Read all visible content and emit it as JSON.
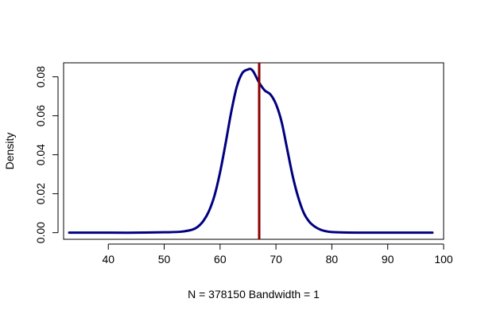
{
  "chart_data": {
    "type": "line",
    "title": "",
    "xlabel": "N = 378150   Bandwidth = 1",
    "ylabel": "Density",
    "xlim": [
      30,
      100
    ],
    "ylim": [
      0,
      0.085
    ],
    "x_ticks": [
      40,
      50,
      60,
      70,
      80,
      90,
      100
    ],
    "y_ticks": [
      0.0,
      0.02,
      0.04,
      0.06,
      0.08
    ],
    "x_tick_labels": [
      "40",
      "50",
      "60",
      "70",
      "80",
      "90",
      "100"
    ],
    "y_tick_labels": [
      "0.00",
      "0.02",
      "0.04",
      "0.06",
      "0.08"
    ],
    "grid": false,
    "series": [
      {
        "color": "#000080",
        "x": [
          33,
          40,
          45,
          50,
          53,
          55,
          56,
          57,
          58,
          59,
          60,
          61,
          62,
          63,
          64,
          65,
          65.5,
          66,
          67,
          68,
          69,
          70,
          71,
          72,
          73,
          74,
          75,
          76,
          77,
          78,
          79,
          80,
          82,
          85,
          90,
          98
        ],
        "y": [
          0.0,
          0.0,
          0.0,
          0.0002,
          0.0005,
          0.0015,
          0.003,
          0.006,
          0.011,
          0.019,
          0.031,
          0.046,
          0.062,
          0.075,
          0.082,
          0.0838,
          0.084,
          0.0825,
          0.077,
          0.073,
          0.071,
          0.066,
          0.057,
          0.043,
          0.029,
          0.018,
          0.01,
          0.0055,
          0.003,
          0.0015,
          0.0007,
          0.0003,
          0.0001,
          0.0,
          0.0,
          0.0
        ]
      }
    ],
    "vertical_line": {
      "x": 67,
      "color": "#8B0000"
    }
  }
}
